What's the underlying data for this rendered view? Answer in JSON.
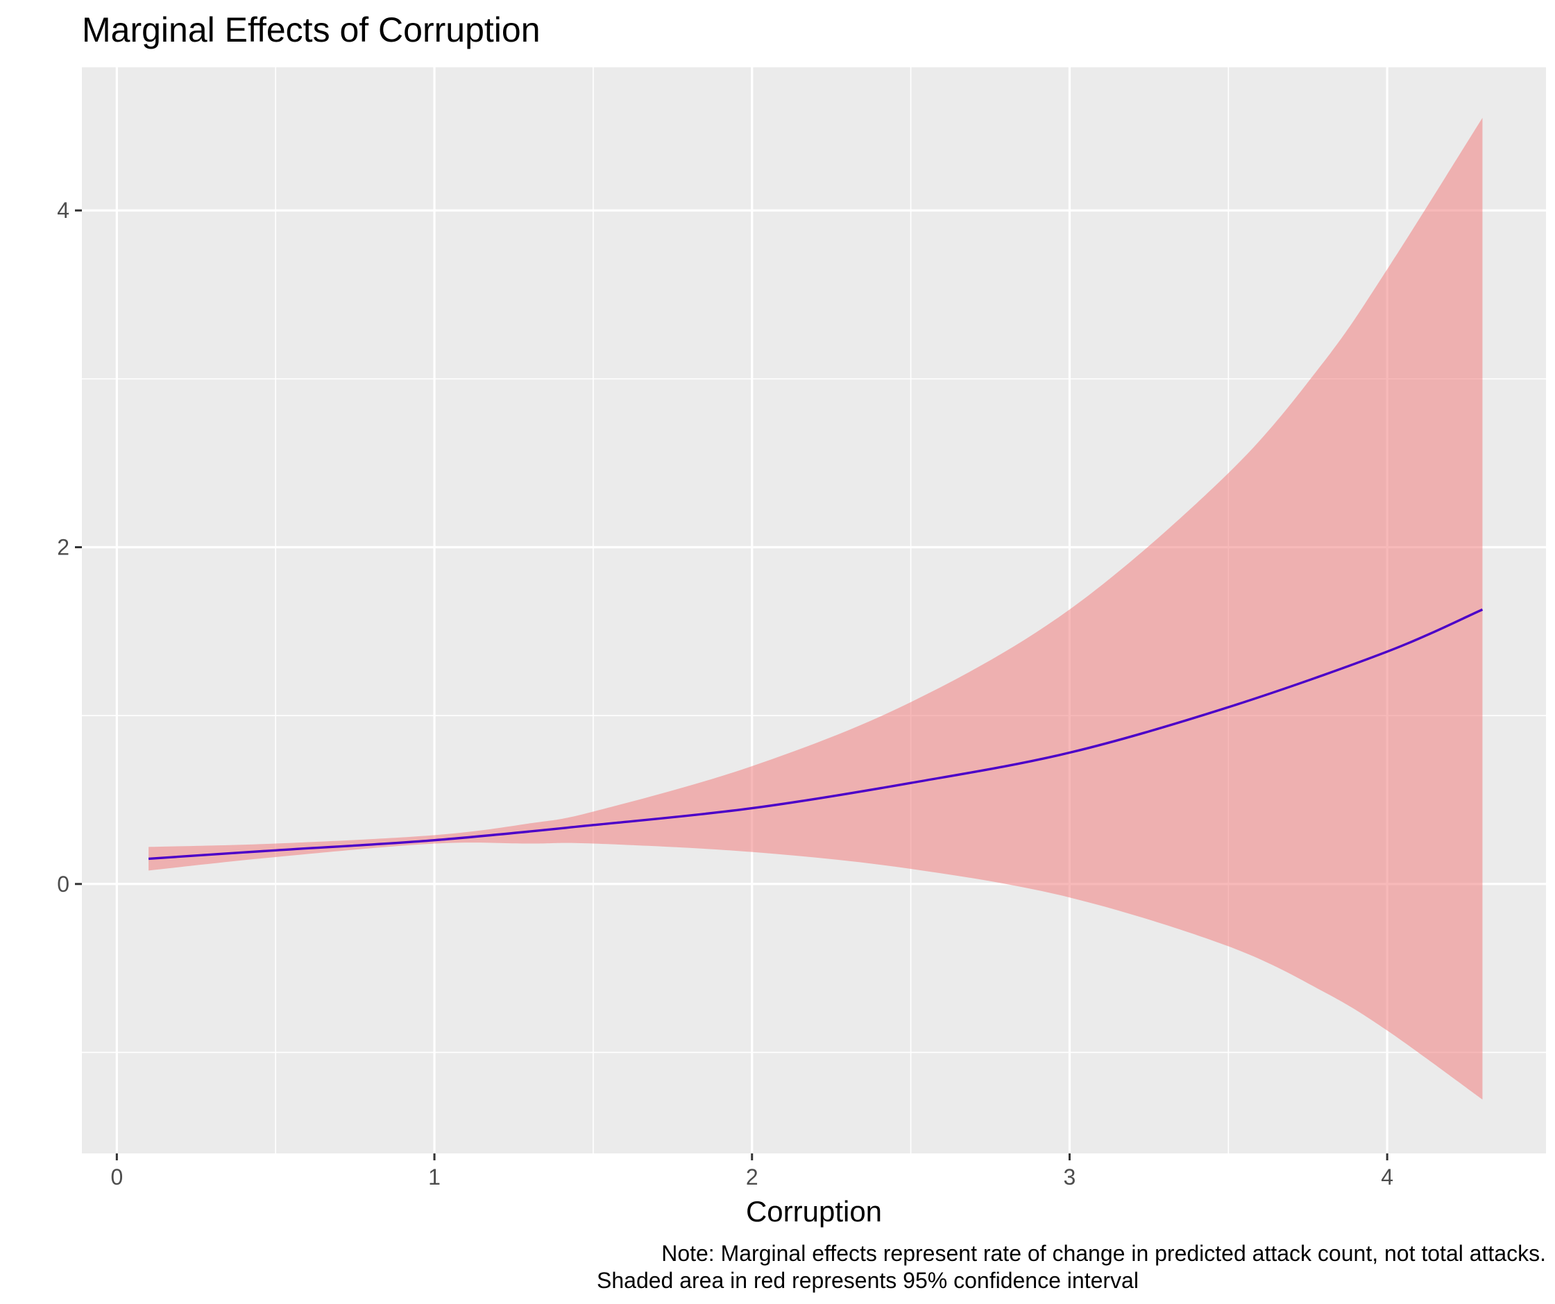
{
  "colors": {
    "panel_background": "#EBEBEB",
    "grid": "#FFFFFF",
    "ribbon": "#F08080",
    "line": "#4B00C8",
    "tick": "#333333"
  },
  "chart_data": {
    "type": "line",
    "title": "Marginal Effects of Corruption",
    "xlabel": "Corruption",
    "ylabel": "",
    "xlim": [
      -0.11,
      4.5
    ],
    "ylim": [
      -1.6,
      4.85
    ],
    "x_ticks": [
      0,
      1,
      2,
      3,
      4
    ],
    "x_tick_labels": [
      "0",
      "1",
      "2",
      "3",
      "4"
    ],
    "y_ticks": [
      0,
      2,
      4
    ],
    "y_tick_labels": [
      "0",
      "2",
      "4"
    ],
    "x_minor_grid": [
      0.5,
      1.5,
      2.5,
      3.5
    ],
    "y_minor_grid": [
      -1,
      1,
      3
    ],
    "grid": true,
    "legend": "none",
    "ribbon_label": "95% confidence interval",
    "series": [
      {
        "kind": "line",
        "x": [
          0.1,
          0.5,
          1.0,
          1.5,
          2.0,
          2.5,
          3.0,
          3.5,
          4.0,
          4.3
        ],
        "y": [
          0.15,
          0.2,
          0.26,
          0.35,
          0.45,
          0.6,
          0.78,
          1.05,
          1.38,
          1.63
        ]
      },
      {
        "kind": "ribbon",
        "x": [
          0.1,
          0.5,
          1.0,
          1.3,
          1.5,
          2.0,
          2.5,
          3.0,
          3.5,
          3.8,
          4.0,
          4.3
        ],
        "upper": [
          0.22,
          0.24,
          0.29,
          0.36,
          0.43,
          0.7,
          1.08,
          1.63,
          2.44,
          3.1,
          3.65,
          4.55
        ],
        "lower": [
          0.08,
          0.16,
          0.24,
          0.24,
          0.24,
          0.19,
          0.09,
          -0.08,
          -0.37,
          -0.64,
          -0.87,
          -1.28
        ]
      }
    ],
    "caption_lines": [
      "Note: Marginal effects represent rate of change in predicted attack count, not total attacks.",
      "Shaded area in red represents 95% confidence interval"
    ]
  }
}
